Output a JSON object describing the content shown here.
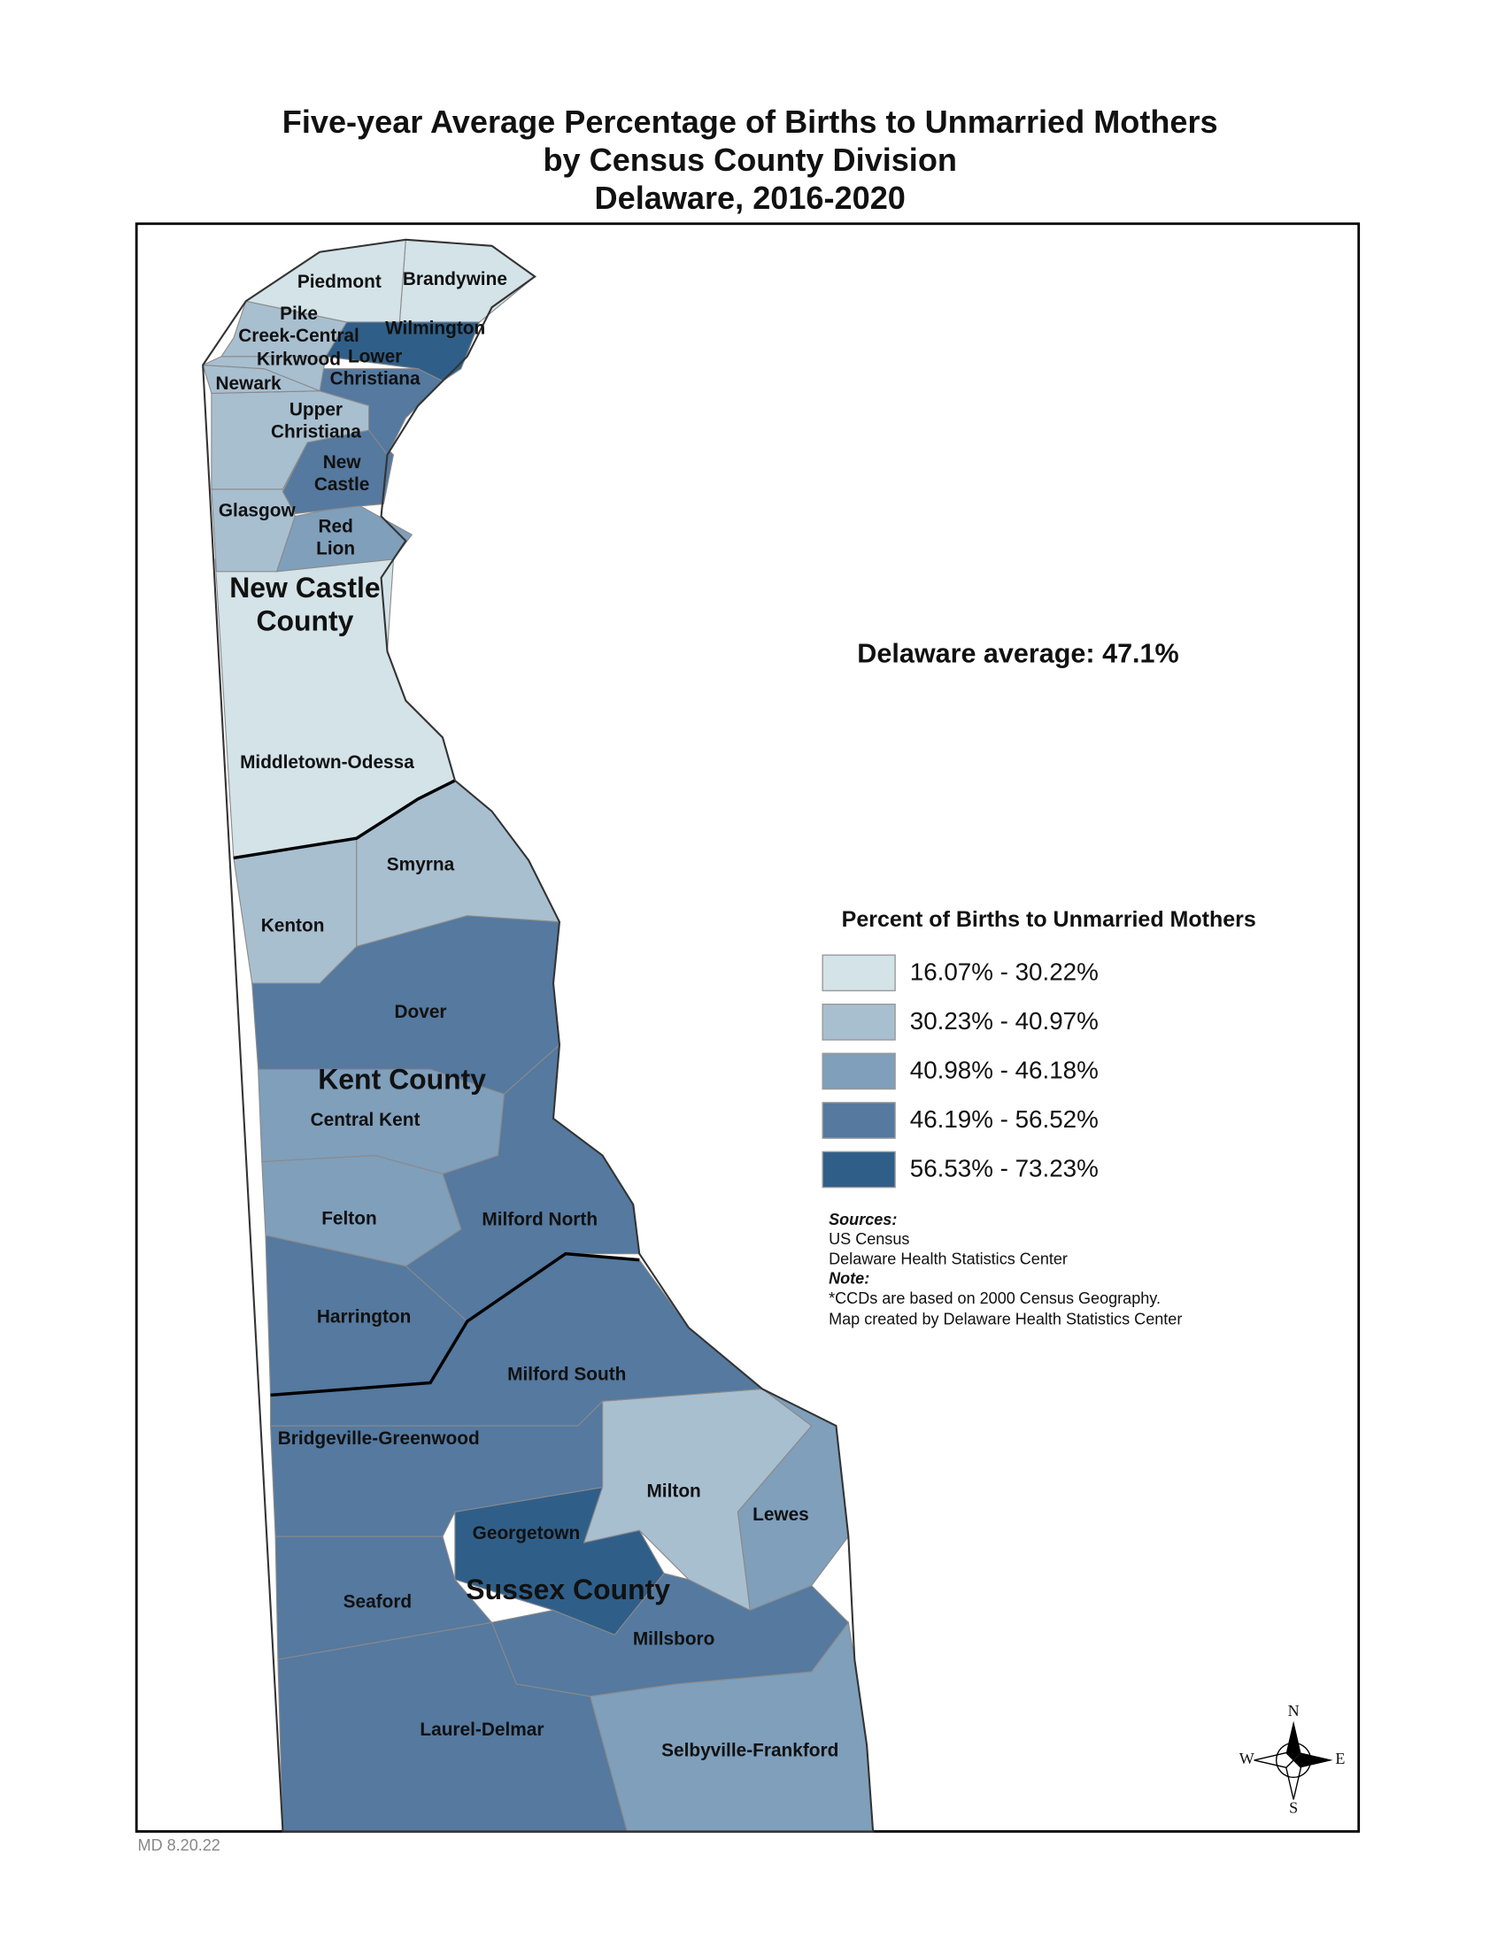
{
  "title": [
    "Five-year Average Percentage of Births to Unmarried Mothers",
    "by Census County Division",
    "Delaware, 2016-2020"
  ],
  "average": "Delaware average: 47.1%",
  "regions": [
    {
      "label": [
        "Piedmont"
      ],
      "color": "#d3e3e8"
    },
    {
      "label": [
        "Brandywine"
      ],
      "color": "#d3e3e8"
    },
    {
      "label": [
        "Pike",
        "Creek-Central"
      ],
      "color": "#a8bfd0"
    },
    {
      "label": [
        "Wilmington"
      ],
      "color": "#2f5f89"
    },
    {
      "label": [
        "Kirkwood"
      ],
      "color": "#a8bfd0"
    },
    {
      "label": [
        "Lower",
        "Christiana"
      ],
      "color": "#55799f"
    },
    {
      "label": [
        "Newark"
      ],
      "color": "#a8bfd0"
    },
    {
      "label": [
        "Upper",
        "Christiana"
      ],
      "color": "#a8bfd0"
    },
    {
      "label": [
        "New",
        "Castle"
      ],
      "color": "#55799f"
    },
    {
      "label": [
        "Glasgow"
      ],
      "color": "#a8bfd0"
    },
    {
      "label": [
        "Red",
        "Lion"
      ],
      "color": "#7f9fbb"
    },
    {
      "label": [
        "Middletown-Odessa"
      ],
      "color": "#d3e3e8"
    },
    {
      "label": [
        "Smyrna"
      ],
      "color": "#a8bfd0"
    },
    {
      "label": [
        "Kenton"
      ],
      "color": "#a8bfd0"
    },
    {
      "label": [
        "Dover"
      ],
      "color": "#55799f"
    },
    {
      "label": [
        "Central Kent"
      ],
      "color": "#7f9fbb"
    },
    {
      "label": [
        "Felton"
      ],
      "color": "#7f9fbb"
    },
    {
      "label": [
        "Milford North"
      ],
      "color": "#55799f"
    },
    {
      "label": [
        "Harrington"
      ],
      "color": "#55799f"
    },
    {
      "label": [
        "Milford South"
      ],
      "color": "#55799f"
    },
    {
      "label": [
        "Bridgeville-Greenwood"
      ],
      "color": "#55799f"
    },
    {
      "label": [
        "Milton"
      ],
      "color": "#a8bfd0"
    },
    {
      "label": [
        "Lewes"
      ],
      "color": "#7f9fbb"
    },
    {
      "label": [
        "Georgetown"
      ],
      "color": "#2f5f89"
    },
    {
      "label": [
        "Seaford"
      ],
      "color": "#55799f"
    },
    {
      "label": [
        "Millsboro"
      ],
      "color": "#55799f"
    },
    {
      "label": [
        "Laurel-Delmar"
      ],
      "color": "#55799f"
    },
    {
      "label": [
        "Selbyville-Frankford"
      ],
      "color": "#7f9fbb"
    }
  ],
  "counties": [
    {
      "label": [
        "New Castle",
        "County"
      ]
    },
    {
      "label": [
        "Kent County"
      ]
    },
    {
      "label": [
        "Sussex County"
      ]
    }
  ],
  "legend": {
    "title": "Percent of Births to Unmarried Mothers",
    "items": [
      {
        "label": "16.07% - 30.22%",
        "color": "#d3e3e8"
      },
      {
        "label": "30.23% - 40.97%",
        "color": "#a8bfd0"
      },
      {
        "label": "40.98% - 46.18%",
        "color": "#7f9fbb"
      },
      {
        "label": "46.19% - 56.52%",
        "color": "#55799f"
      },
      {
        "label": "56.53% - 73.23%",
        "color": "#2f5f89"
      }
    ]
  },
  "sources": {
    "heading": "Sources:",
    "lines": [
      "US Census",
      "Delaware Health Statistics Center"
    ],
    "note_heading": "Note:",
    "note_lines": [
      "*CCDs are based on 2000 Census Geography.",
      "Map created by Delaware Health Statistics Center"
    ]
  },
  "compass": {
    "n": "N",
    "e": "E",
    "s": "S",
    "w": "W"
  },
  "footer": "MD 8.20.22"
}
